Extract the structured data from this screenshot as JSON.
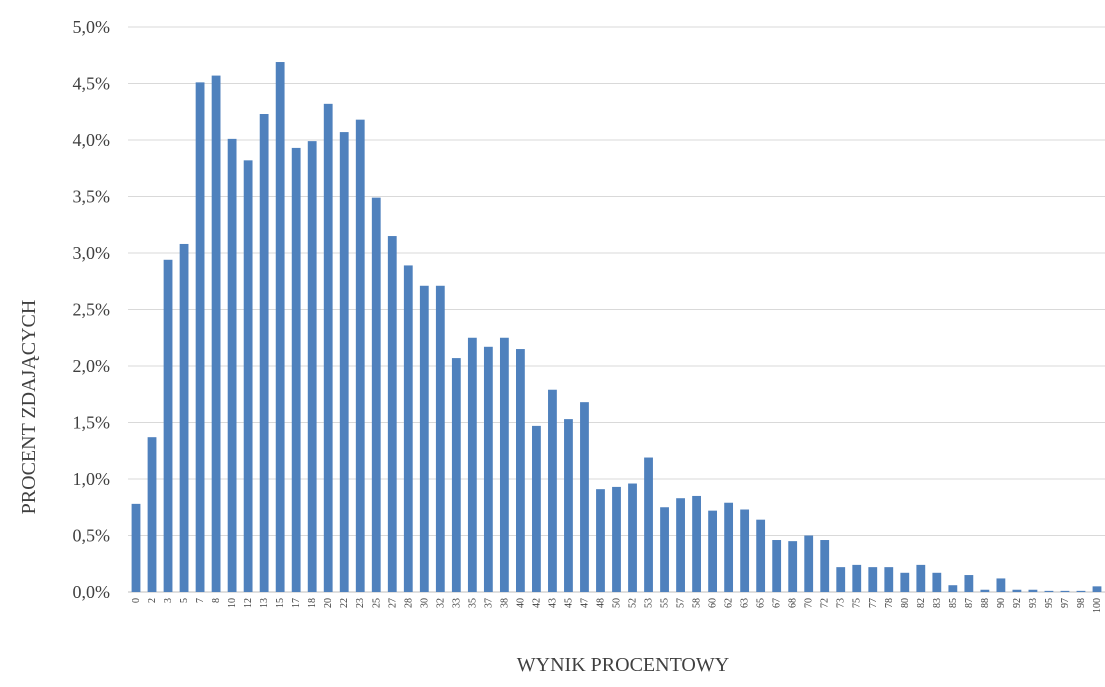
{
  "chart_data": {
    "type": "bar",
    "title": "",
    "xlabel": "WYNIK PROCENTOWY",
    "ylabel": "PROCENT ZDAJĄCYCH",
    "ylim": [
      0,
      5.0
    ],
    "yticks": [
      "0,0%",
      "0,5%",
      "1,0%",
      "1,5%",
      "2,0%",
      "2,5%",
      "3,0%",
      "3,5%",
      "4,0%",
      "4,5%",
      "5,0%"
    ],
    "grid": true,
    "bar_color": "#4f81bd",
    "grid_color": "#d9d9d9",
    "categories": [
      "0",
      "2",
      "3",
      "5",
      "7",
      "8",
      "10",
      "12",
      "13",
      "15",
      "17",
      "18",
      "20",
      "22",
      "23",
      "25",
      "27",
      "28",
      "30",
      "32",
      "33",
      "35",
      "37",
      "38",
      "40",
      "42",
      "43",
      "45",
      "47",
      "48",
      "50",
      "52",
      "53",
      "55",
      "57",
      "58",
      "60",
      "62",
      "63",
      "65",
      "67",
      "68",
      "70",
      "72",
      "73",
      "75",
      "77",
      "78",
      "80",
      "82",
      "83",
      "85",
      "87",
      "88",
      "90",
      "92",
      "93",
      "95",
      "97",
      "98",
      "100"
    ],
    "values": [
      0.78,
      1.37,
      2.94,
      3.08,
      4.51,
      4.57,
      4.01,
      3.82,
      4.23,
      4.69,
      3.93,
      3.99,
      4.32,
      4.07,
      4.18,
      3.49,
      3.15,
      2.89,
      2.71,
      2.71,
      2.07,
      2.25,
      2.17,
      2.25,
      2.15,
      1.47,
      1.79,
      1.53,
      1.68,
      0.91,
      0.93,
      0.96,
      1.19,
      0.75,
      0.83,
      0.85,
      0.72,
      0.79,
      0.73,
      0.64,
      0.46,
      0.45,
      0.5,
      0.46,
      0.22,
      0.24,
      0.22,
      0.22,
      0.17,
      0.24,
      0.17,
      0.06,
      0.15,
      0.02,
      0.12,
      0.02,
      0.02,
      0.01,
      0.01,
      0.01,
      0.05
    ]
  }
}
